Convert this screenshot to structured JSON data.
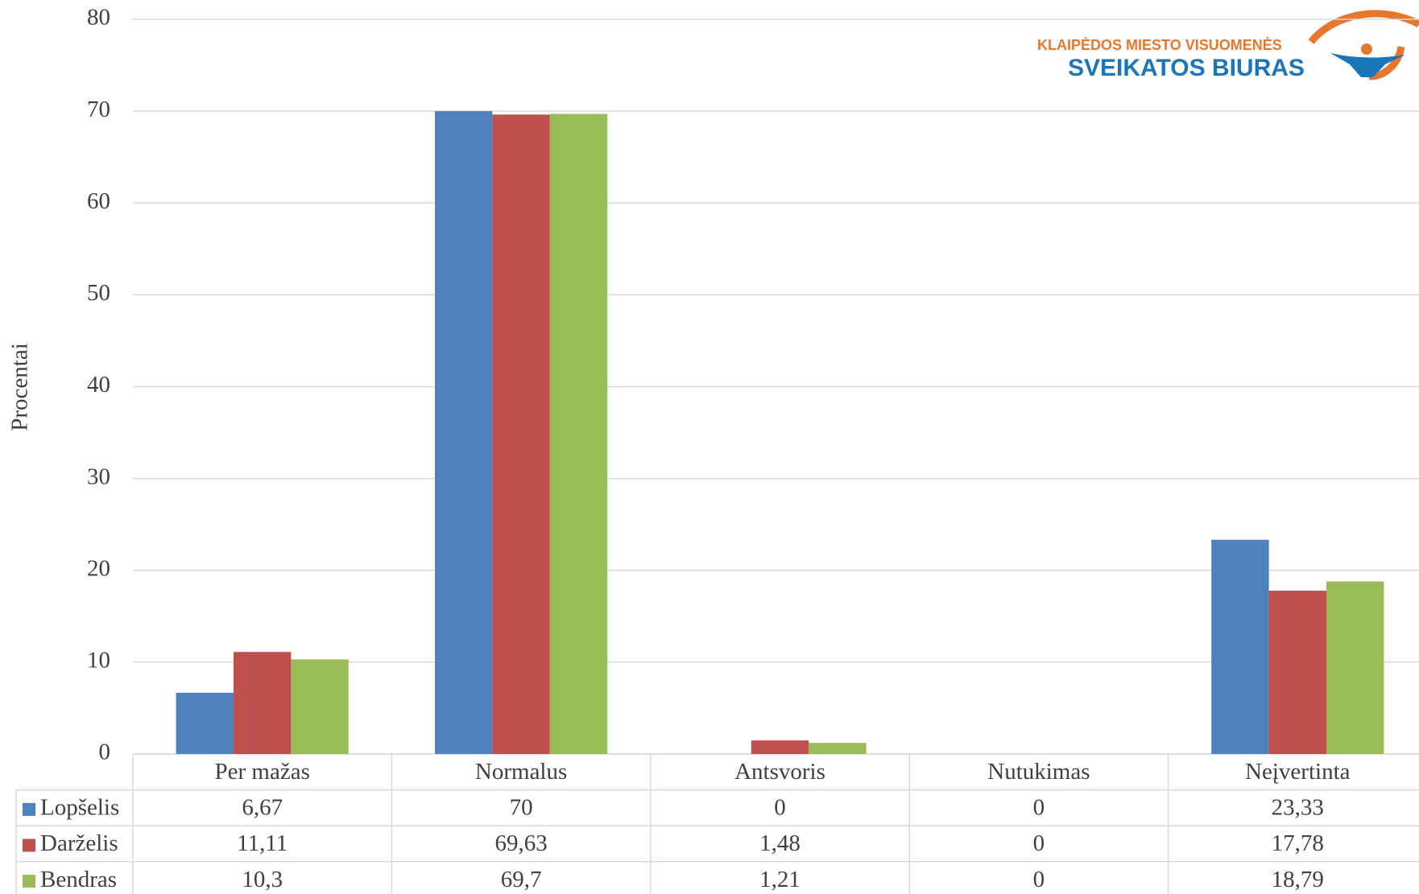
{
  "logo": {
    "line1": "KLAIPĖDOS MIESTO VISUOMENĖS",
    "line2": "SVEIKATOS BIURAS"
  },
  "chart_data": {
    "type": "bar",
    "y_label": "Procentai",
    "categories": [
      "Per mažas",
      "Normalus",
      "Antsvoris",
      "Nutukimas",
      "Neįvertinta"
    ],
    "series": [
      {
        "name": "Lopšelis",
        "color": "#4f81bd",
        "values": [
          6.67,
          70,
          0,
          0,
          23.33
        ],
        "value_labels": [
          "6,67",
          "70",
          "0",
          "0",
          "23,33"
        ]
      },
      {
        "name": "Darželis",
        "color": "#c0504d",
        "values": [
          11.11,
          69.63,
          1.48,
          0,
          17.78
        ],
        "value_labels": [
          "11,11",
          "69,63",
          "1,48",
          "0",
          "17,78"
        ]
      },
      {
        "name": "Bendras",
        "color": "#9bbb59",
        "values": [
          10.3,
          69.7,
          1.21,
          0,
          18.79
        ],
        "value_labels": [
          "10,3",
          "69,7",
          "1,21",
          "0",
          "18,79"
        ]
      }
    ],
    "ylim": [
      0,
      80
    ],
    "yticks": [
      0,
      10,
      20,
      30,
      40,
      50,
      60,
      70,
      80
    ],
    "grid": true,
    "legend": "table"
  }
}
